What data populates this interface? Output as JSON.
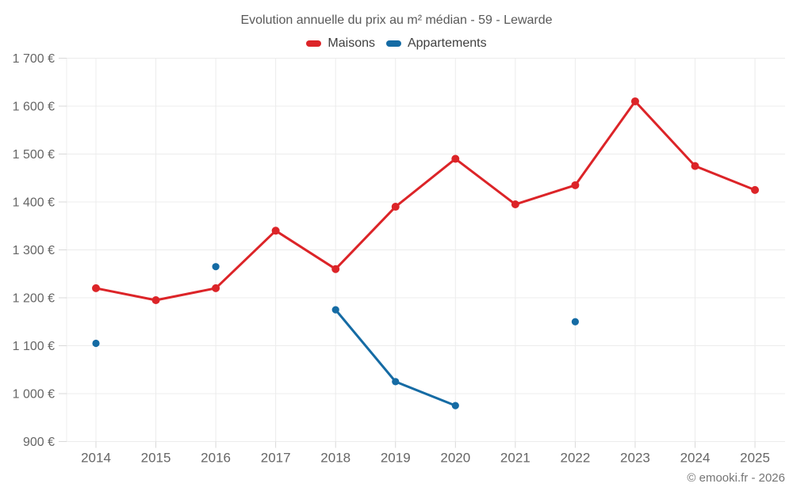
{
  "title": "Evolution annuelle du prix au m² médian - 59 - Lewarde",
  "footer": {
    "text": "© emooki.fr - 2026"
  },
  "colors": {
    "maisons": "#dc2428",
    "appartements": "#156ba4",
    "grid": "#ececec",
    "tick": "#d9d9d9",
    "axis_text": "#666666",
    "title_text": "#595959",
    "footer_text": "#757575"
  },
  "chart_data": {
    "type": "line",
    "title": "Evolution annuelle du prix au m² médian - 59 - Lewarde",
    "categories": [
      2014,
      2015,
      2016,
      2017,
      2018,
      2019,
      2020,
      2021,
      2022,
      2023,
      2024,
      2025
    ],
    "series": [
      {
        "name": "Maisons",
        "color": "#dc2428",
        "values": [
          1220,
          1195,
          1220,
          1340,
          1260,
          1390,
          1490,
          1395,
          1435,
          1610,
          1475,
          1425
        ]
      },
      {
        "name": "Appartements",
        "color": "#156ba4",
        "values": [
          1105,
          null,
          1265,
          null,
          1175,
          1025,
          975,
          null,
          1150,
          null,
          null,
          null
        ]
      }
    ],
    "xlabel": "",
    "ylabel": "",
    "ylabel_suffix": "€",
    "ylim": [
      900,
      1700
    ],
    "ytick_step": 100,
    "grid": true,
    "legend_position": "top"
  }
}
